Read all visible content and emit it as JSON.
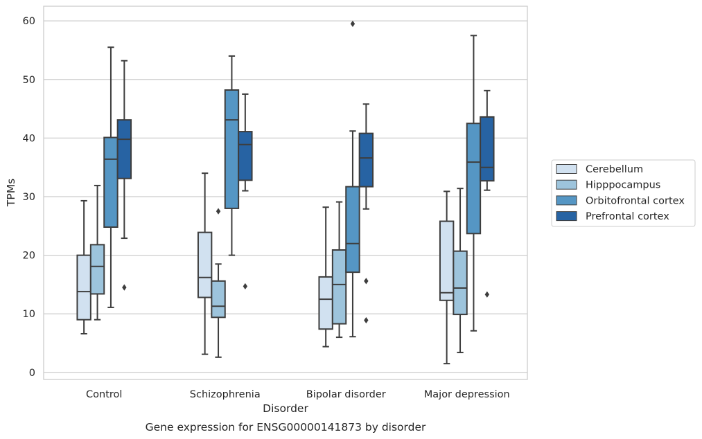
{
  "chart_data": {
    "type": "box",
    "caption": "Gene expression for ENSG00000141873 by disorder",
    "xlabel": "Disorder",
    "ylabel": "TPMs",
    "ylim": [
      -1.2,
      62.5
    ],
    "yticks": [
      0,
      10,
      20,
      30,
      40,
      50,
      60
    ],
    "grid": "horizontal",
    "legend_position": "right",
    "categories": [
      "Control",
      "Schizophrenia",
      "Bipolar disorder",
      "Major depression"
    ],
    "series": [
      {
        "name": "Cerebellum",
        "color": "#d1e1f0",
        "boxes": [
          {
            "whislo": 6.6,
            "q1": 9.0,
            "med": 13.8,
            "q3": 20.0,
            "whishi": 29.3,
            "fliers": []
          },
          {
            "whislo": 3.1,
            "q1": 12.8,
            "med": 16.2,
            "q3": 23.9,
            "whishi": 34.0,
            "fliers": []
          },
          {
            "whislo": 4.4,
            "q1": 7.4,
            "med": 12.5,
            "q3": 16.3,
            "whishi": 28.2,
            "fliers": []
          },
          {
            "whislo": 1.5,
            "q1": 12.3,
            "med": 13.6,
            "q3": 25.8,
            "whishi": 30.9,
            "fliers": []
          }
        ]
      },
      {
        "name": "Hipppocampus",
        "color": "#9dc4dc",
        "boxes": [
          {
            "whislo": 9.0,
            "q1": 13.4,
            "med": 18.1,
            "q3": 21.8,
            "whishi": 31.9,
            "fliers": []
          },
          {
            "whislo": 2.6,
            "q1": 9.4,
            "med": 11.3,
            "q3": 15.6,
            "whishi": 18.5,
            "fliers": [
              27.5
            ]
          },
          {
            "whislo": 6.0,
            "q1": 8.3,
            "med": 15.0,
            "q3": 20.9,
            "whishi": 29.1,
            "fliers": []
          },
          {
            "whislo": 3.4,
            "q1": 9.9,
            "med": 14.4,
            "q3": 20.7,
            "whishi": 31.4,
            "fliers": []
          }
        ]
      },
      {
        "name": "Orbitofrontal cortex",
        "color": "#5596c4",
        "boxes": [
          {
            "whislo": 11.1,
            "q1": 24.8,
            "med": 36.4,
            "q3": 40.1,
            "whishi": 55.5,
            "fliers": []
          },
          {
            "whislo": 20.0,
            "q1": 28.0,
            "med": 43.1,
            "q3": 48.2,
            "whishi": 54.0,
            "fliers": []
          },
          {
            "whislo": 6.1,
            "q1": 17.1,
            "med": 22.0,
            "q3": 31.7,
            "whishi": 41.2,
            "fliers": [
              59.5
            ]
          },
          {
            "whislo": 7.1,
            "q1": 23.7,
            "med": 35.9,
            "q3": 42.5,
            "whishi": 57.5,
            "fliers": []
          }
        ]
      },
      {
        "name": "Prefrontal cortex",
        "color": "#2763a3",
        "boxes": [
          {
            "whislo": 22.9,
            "q1": 33.1,
            "med": 39.8,
            "q3": 43.1,
            "whishi": 53.2,
            "fliers": [
              14.5
            ]
          },
          {
            "whislo": 31.0,
            "q1": 32.8,
            "med": 38.9,
            "q3": 41.1,
            "whishi": 47.5,
            "fliers": [
              14.7
            ]
          },
          {
            "whislo": 27.9,
            "q1": 31.7,
            "med": 36.6,
            "q3": 40.8,
            "whishi": 45.8,
            "fliers": [
              15.6,
              8.9
            ]
          },
          {
            "whislo": 31.1,
            "q1": 32.7,
            "med": 35.0,
            "q3": 43.6,
            "whishi": 48.1,
            "fliers": [
              13.3
            ]
          }
        ]
      }
    ]
  }
}
